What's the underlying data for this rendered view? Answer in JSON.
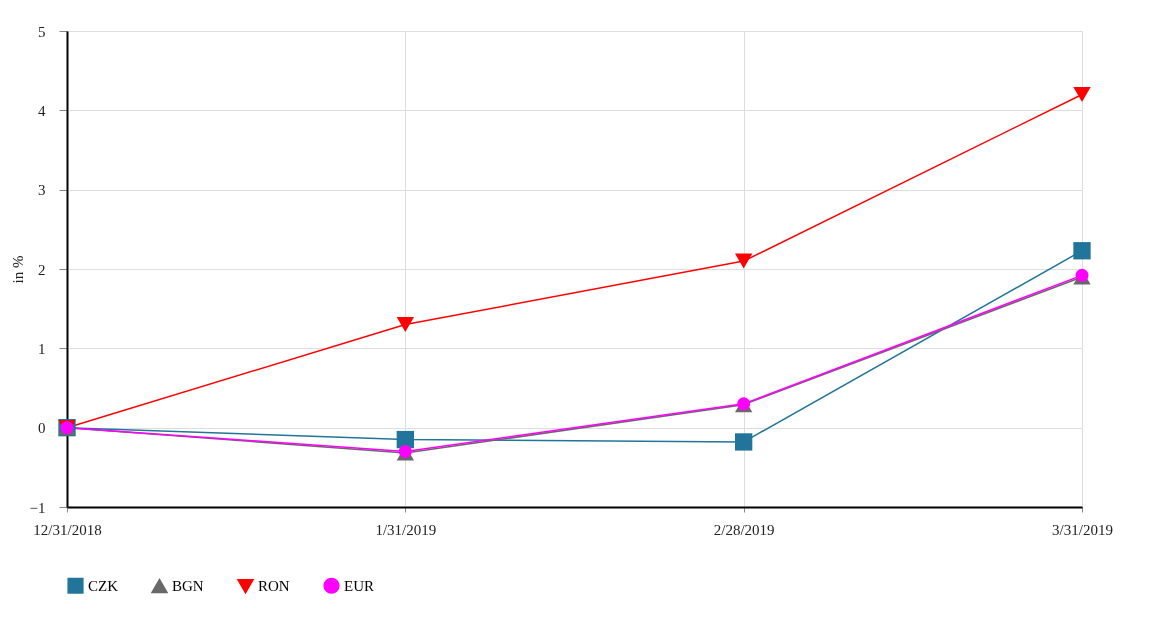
{
  "chart_data": {
    "type": "line",
    "ylabel": "in %",
    "categories": [
      "12/31/2018",
      "1/31/2019",
      "2/28/2019",
      "3/31/2019"
    ],
    "series": [
      {
        "name": "CZK",
        "color": "#21759b",
        "marker": "square",
        "values": [
          0,
          -0.15,
          -0.18,
          2.23
        ]
      },
      {
        "name": "BGN",
        "color": "#696969",
        "marker": "triangle",
        "values": [
          0,
          -0.32,
          0.29,
          1.9
        ]
      },
      {
        "name": "RON",
        "color": "#ff0000",
        "marker": "triangle-down",
        "values": [
          0,
          1.3,
          2.1,
          4.2
        ]
      },
      {
        "name": "EUR",
        "color": "#ff00ff",
        "marker": "circle",
        "values": [
          0,
          -0.3,
          0.3,
          1.92
        ]
      }
    ],
    "ylim": [
      -1,
      5
    ],
    "yticks": [
      -1,
      0,
      1,
      2,
      3,
      4,
      5
    ],
    "grid": true,
    "legend": "bottom",
    "line_style": "solid"
  }
}
